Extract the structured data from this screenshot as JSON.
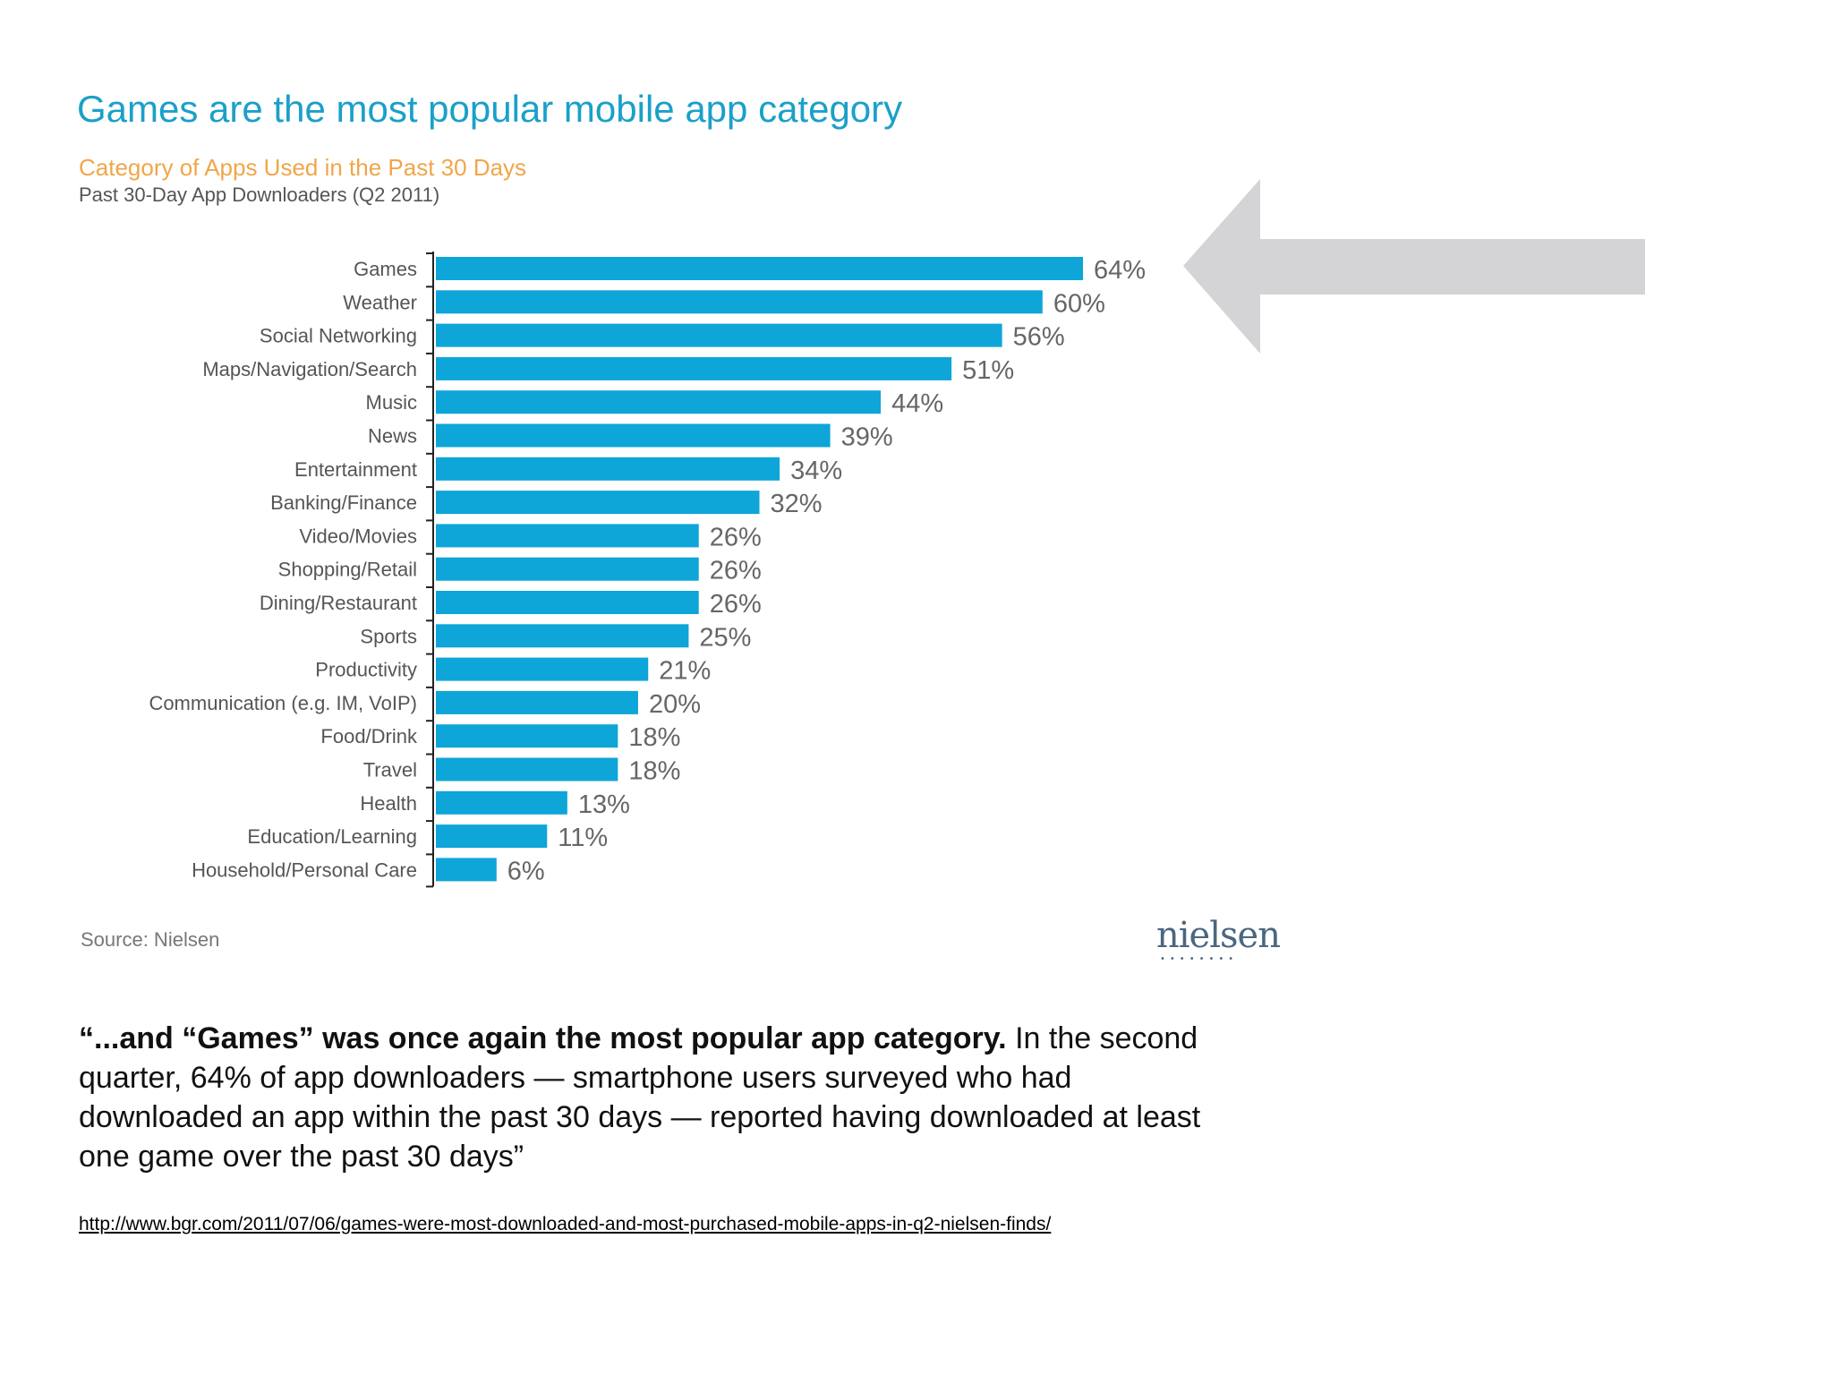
{
  "chart_data": {
    "type": "bar",
    "orientation": "horizontal",
    "title": "Games are the most popular mobile app category",
    "subtitle": "Category of Apps Used in the Past 30 Days",
    "subtitle2": "Past 30-Day App Downloaders  (Q2 2011)",
    "categories": [
      "Games",
      "Weather",
      "Social Networking",
      "Maps/Navigation/Search",
      "Music",
      "News",
      "Entertainment",
      "Banking/Finance",
      "Video/Movies",
      "Shopping/Retail",
      "Dining/Restaurant",
      "Sports",
      "Productivity",
      "Communication (e.g. IM, VoIP)",
      "Food/Drink",
      "Travel",
      "Health",
      "Education/Learning",
      "Household/Personal Care"
    ],
    "values": [
      64,
      60,
      56,
      51,
      44,
      39,
      34,
      32,
      26,
      26,
      26,
      25,
      21,
      20,
      18,
      18,
      13,
      11,
      6
    ],
    "value_labels": [
      "64%",
      "60%",
      "56%",
      "51%",
      "44%",
      "39%",
      "34%",
      "32%",
      "26%",
      "26%",
      "26%",
      "25%",
      "21%",
      "20%",
      "18%",
      "18%",
      "13%",
      "11%",
      "6%"
    ],
    "xlim": [
      0,
      64
    ],
    "grid": false,
    "legend": "none",
    "bar_color": "#0ea5d8",
    "label_color": "#555555",
    "value_color": "#666666"
  },
  "source": "Source: Nielsen",
  "logo_text": "nielsen",
  "logo_dots": "••••••••",
  "arrow_color": "#d4d3d6",
  "quote": {
    "bold": "“...and “Games” was once again the most popular app category.",
    "rest": " In the second quarter, 64% of app downloaders — smartphone users surveyed who had downloaded an app within the past 30 days — reported having downloaded at least one game over the past 30 days”"
  },
  "link_url": "http://www.bgr.com/2011/07/06/games-were-most-downloaded-and-most-purchased-mobile-apps-in-q2-nielsen-finds/"
}
